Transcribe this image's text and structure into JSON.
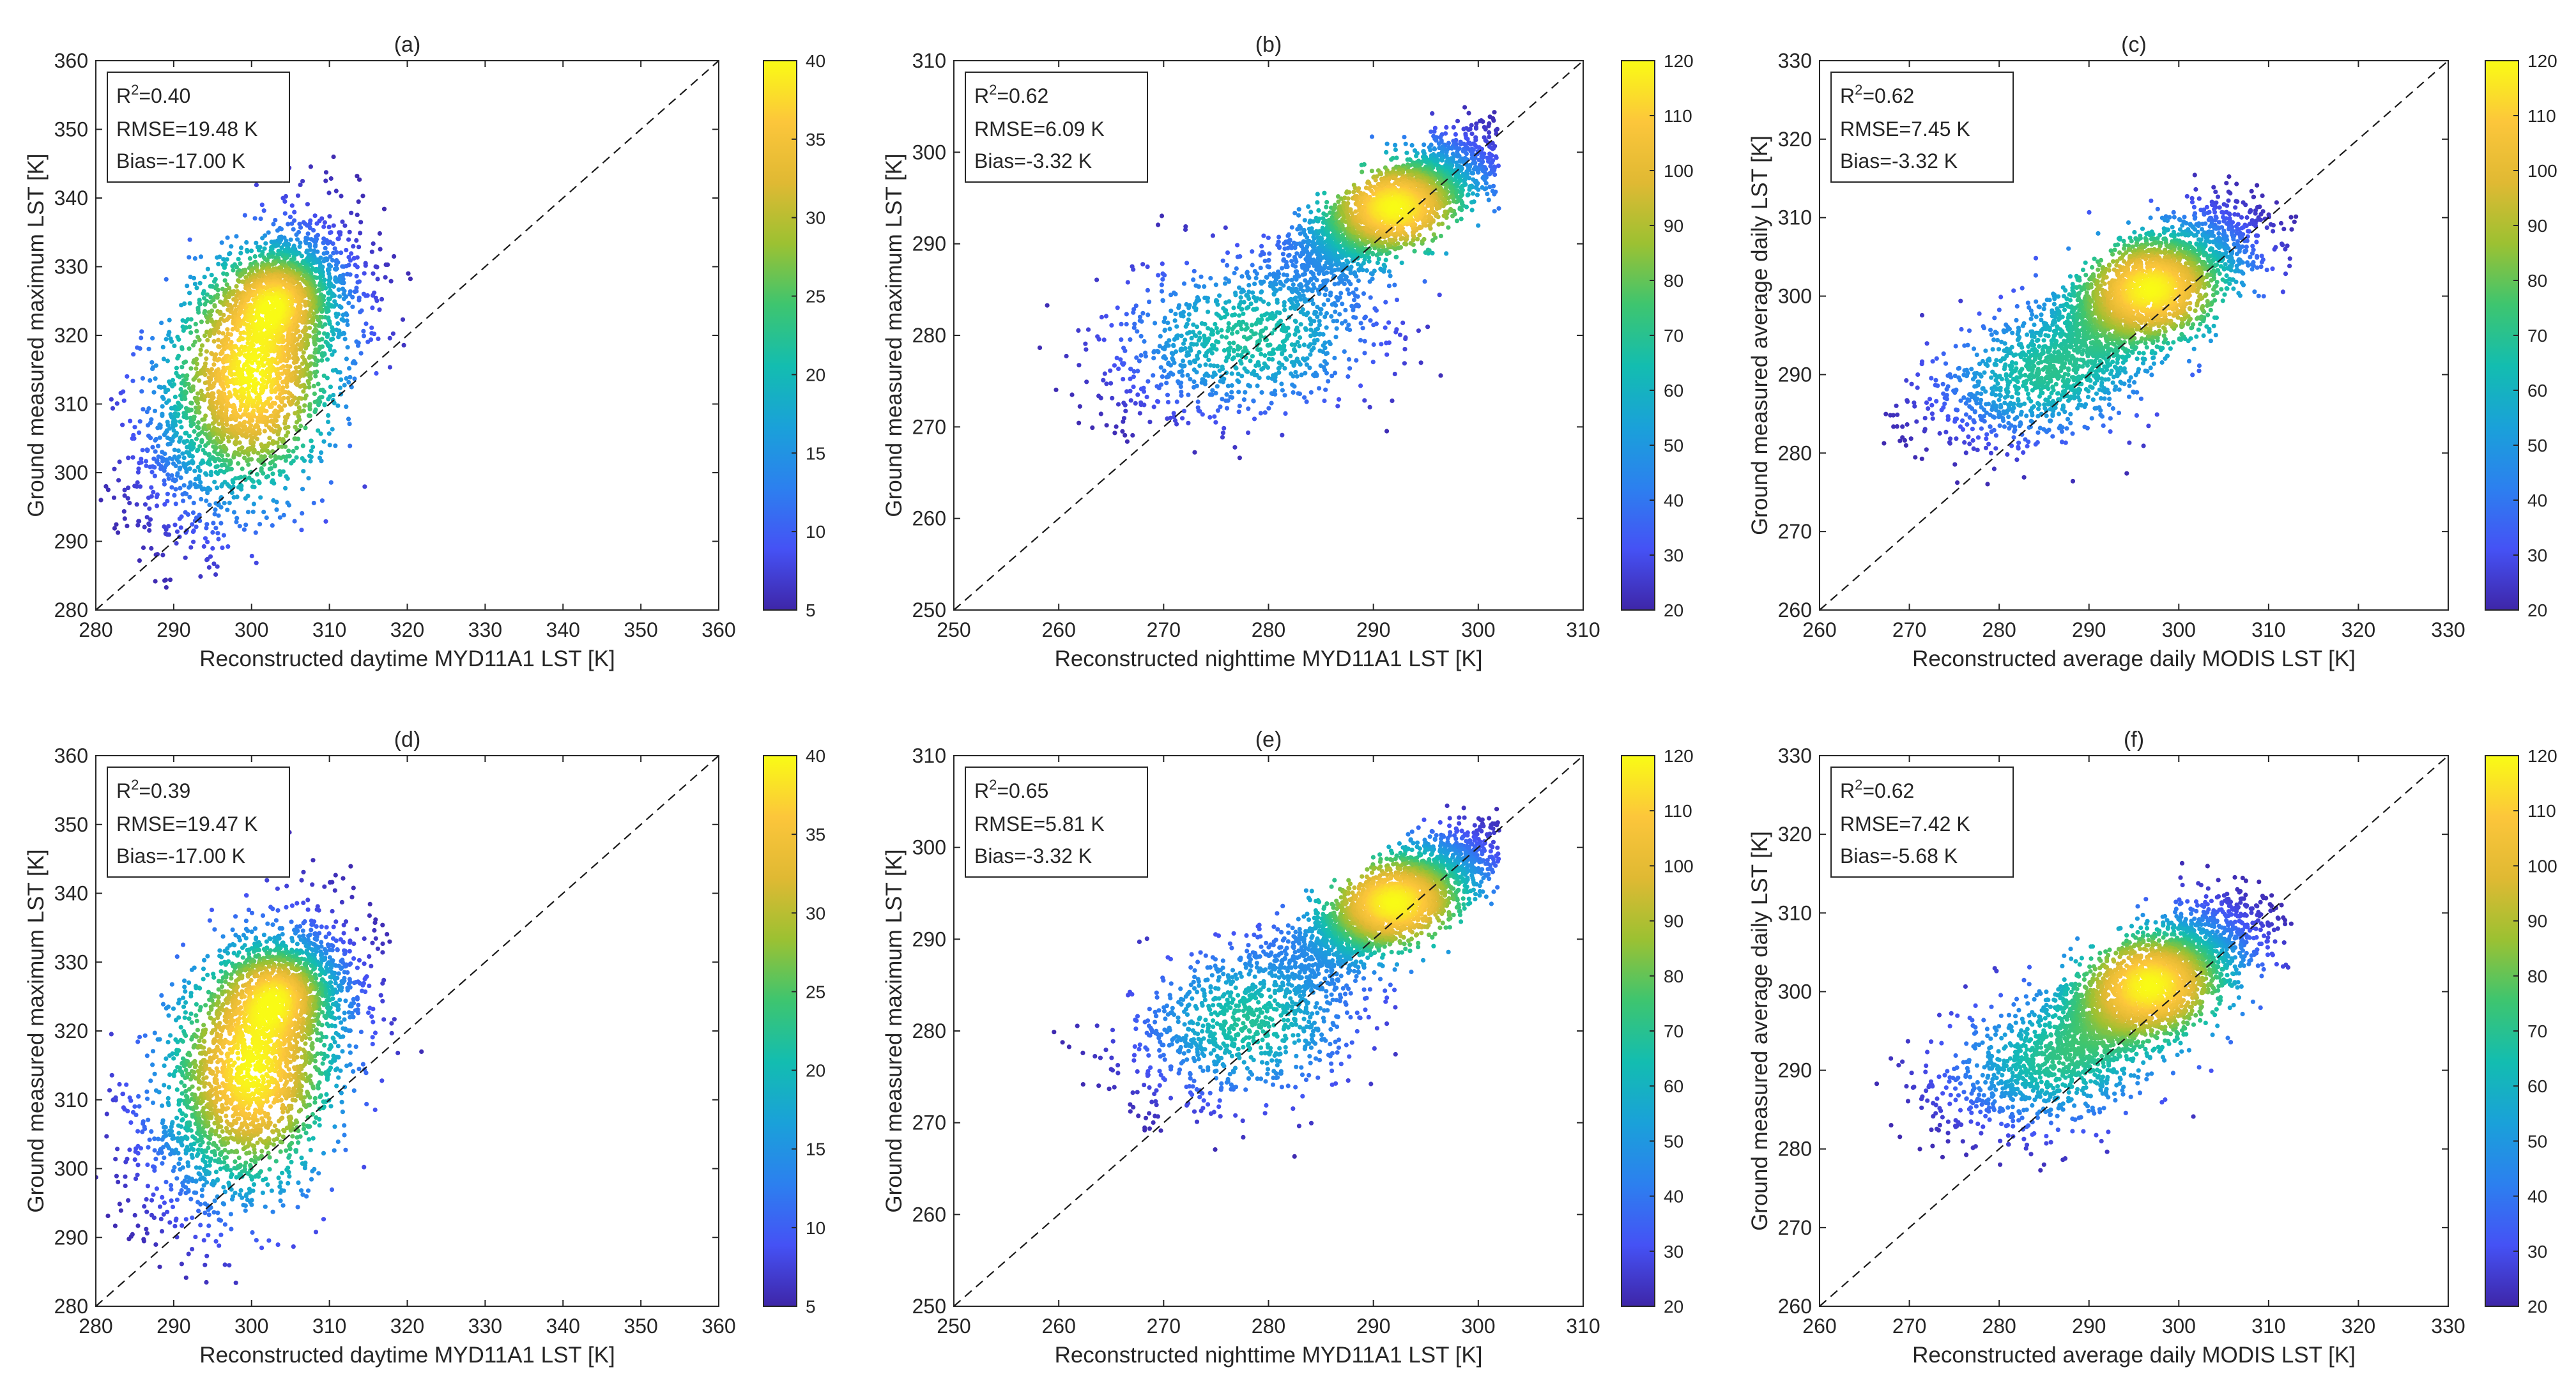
{
  "figure": {
    "background": "#ffffff",
    "colormap": "parula"
  },
  "colormap_stops": [
    "#3e26a8",
    "#4552f5",
    "#2c80ef",
    "#1aa1d9",
    "#13bdb0",
    "#3ec56f",
    "#9cc132",
    "#e0b933",
    "#fcc63b",
    "#f9fb15"
  ],
  "chart_data": [
    {
      "type": "scatter",
      "subtype": "density scatter with 1:1 reference line",
      "panel": "(a)",
      "xlabel": "Reconstructed daytime MYD11A1 LST [K]",
      "ylabel": "Ground measured maximum LST [K]",
      "xlim": [
        280,
        360
      ],
      "ylim": [
        280,
        360
      ],
      "xticks": [
        280,
        290,
        300,
        310,
        320,
        330,
        340,
        350,
        360
      ],
      "yticks": [
        280,
        290,
        300,
        310,
        320,
        330,
        340,
        350,
        360
      ],
      "stats": {
        "r2_prefix": "R",
        "r2_sup": "2",
        "r2_value": "=0.40",
        "rmse": "RMSE=19.48 K",
        "bias": "Bias=-17.00 K"
      },
      "colorbar": {
        "range": [
          5,
          40
        ],
        "ticks": [
          5,
          10,
          15,
          20,
          25,
          30,
          35,
          40
        ]
      },
      "one_to_one_line": true,
      "point_cloud": {
        "main": {
          "center": [
            300,
            314
          ],
          "sd_x": 7,
          "sd_y": 11,
          "corr": 0.5
        },
        "secondary": {
          "center": [
            304,
            326
          ],
          "sd_x": 4,
          "sd_y": 4,
          "corr": 0.2
        },
        "x_range": [
          280,
          343
        ],
        "y_range": [
          283,
          351
        ]
      }
    },
    {
      "type": "scatter",
      "subtype": "density scatter with 1:1 reference line",
      "panel": "(b)",
      "xlabel": "Reconstructed nighttime MYD11A1 LST [K]",
      "ylabel": "Ground measured maximum LST [K]",
      "xlim": [
        250,
        310
      ],
      "ylim": [
        250,
        310
      ],
      "xticks": [
        250,
        260,
        270,
        280,
        290,
        300,
        310
      ],
      "yticks": [
        250,
        260,
        270,
        280,
        290,
        300,
        310
      ],
      "stats": {
        "r2_prefix": "R",
        "r2_sup": "2",
        "r2_value": "=0.62",
        "rmse": "RMSE=6.09 K",
        "bias": "Bias=-3.32 K"
      },
      "colorbar": {
        "range": [
          20,
          120
        ],
        "ticks": [
          20,
          30,
          40,
          50,
          60,
          70,
          80,
          90,
          100,
          110,
          120
        ]
      },
      "one_to_one_line": true,
      "point_cloud": {
        "main": {
          "center": [
            292,
            294
          ],
          "sd_x": 5,
          "sd_y": 4,
          "corr": 0.8
        },
        "secondary": {
          "center": [
            278,
            280
          ],
          "sd_x": 7,
          "sd_y": 5,
          "corr": 0.4
        },
        "x_range": [
          252,
          302
        ],
        "y_range": [
          261,
          307
        ]
      }
    },
    {
      "type": "scatter",
      "subtype": "density scatter with 1:1 reference line",
      "panel": "(c)",
      "xlabel": "Reconstructed average daily MODIS LST [K]",
      "ylabel": "Ground measured average daily LST [K]",
      "xlim": [
        260,
        330
      ],
      "ylim": [
        260,
        330
      ],
      "xticks": [
        260,
        270,
        280,
        290,
        300,
        310,
        320,
        330
      ],
      "yticks": [
        260,
        270,
        280,
        290,
        300,
        310,
        320,
        330
      ],
      "stats": {
        "r2_prefix": "R",
        "r2_sup": "2",
        "r2_value": "=0.62",
        "rmse": "RMSE=7.45 K",
        "bias": "Bias=-3.32 K"
      },
      "colorbar": {
        "range": [
          20,
          120
        ],
        "ticks": [
          20,
          30,
          40,
          50,
          60,
          70,
          80,
          90,
          100,
          110,
          120
        ]
      },
      "one_to_one_line": true,
      "point_cloud": {
        "main": {
          "center": [
            297,
            301
          ],
          "sd_x": 6,
          "sd_y": 5,
          "corr": 0.7
        },
        "secondary": {
          "center": [
            285,
            290
          ],
          "sd_x": 7,
          "sd_y": 5,
          "corr": 0.5
        },
        "x_range": [
          267,
          325
        ],
        "y_range": [
          272,
          325
        ]
      }
    },
    {
      "type": "scatter",
      "subtype": "density scatter with 1:1 reference line",
      "panel": "(d)",
      "xlabel": "Reconstructed daytime MYD11A1 LST [K]",
      "ylabel": "Ground measured maximum LST [K]",
      "xlim": [
        280,
        360
      ],
      "ylim": [
        280,
        360
      ],
      "xticks": [
        280,
        290,
        300,
        310,
        320,
        330,
        340,
        350,
        360
      ],
      "yticks": [
        280,
        290,
        300,
        310,
        320,
        330,
        340,
        350,
        360
      ],
      "stats": {
        "r2_prefix": "R",
        "r2_sup": "2",
        "r2_value": "=0.39",
        "rmse": "RMSE=19.47 K",
        "bias": "Bias=-17.00 K"
      },
      "colorbar": {
        "range": [
          5,
          40
        ],
        "ticks": [
          5,
          10,
          15,
          20,
          25,
          30,
          35,
          40
        ]
      },
      "one_to_one_line": true,
      "point_cloud": {
        "main": {
          "center": [
            300,
            314
          ],
          "sd_x": 7,
          "sd_y": 11,
          "corr": 0.5
        },
        "secondary": {
          "center": [
            304,
            326
          ],
          "sd_x": 4,
          "sd_y": 4,
          "corr": 0.2
        },
        "x_range": [
          280,
          341
        ],
        "y_range": [
          283,
          351
        ]
      }
    },
    {
      "type": "scatter",
      "subtype": "density scatter with 1:1 reference line",
      "panel": "(e)",
      "xlabel": "Reconstructed nighttime MYD11A1 LST [K]",
      "ylabel": "Ground measured maximum LST [K]",
      "xlim": [
        250,
        310
      ],
      "ylim": [
        250,
        310
      ],
      "xticks": [
        250,
        260,
        270,
        280,
        290,
        300,
        310
      ],
      "yticks": [
        250,
        260,
        270,
        280,
        290,
        300,
        310
      ],
      "stats": {
        "r2_prefix": "R",
        "r2_sup": "2",
        "r2_value": "=0.65",
        "rmse": "RMSE=5.81 K",
        "bias": "Bias=-3.32 K"
      },
      "colorbar": {
        "range": [
          20,
          120
        ],
        "ticks": [
          20,
          30,
          40,
          50,
          60,
          70,
          80,
          90,
          100,
          110,
          120
        ]
      },
      "one_to_one_line": true,
      "point_cloud": {
        "main": {
          "center": [
            292,
            294
          ],
          "sd_x": 5,
          "sd_y": 4,
          "corr": 0.8
        },
        "secondary": {
          "center": [
            278,
            281
          ],
          "sd_x": 6,
          "sd_y": 5,
          "corr": 0.4
        },
        "x_range": [
          255,
          302
        ],
        "y_range": [
          261,
          307
        ]
      }
    },
    {
      "type": "scatter",
      "subtype": "density scatter with 1:1 reference line",
      "panel": "(f)",
      "xlabel": "Reconstructed average daily MODIS LST [K]",
      "ylabel": "Ground measured average daily LST [K]",
      "xlim": [
        260,
        330
      ],
      "ylim": [
        260,
        330
      ],
      "xticks": [
        260,
        270,
        280,
        290,
        300,
        310,
        320,
        330
      ],
      "yticks": [
        260,
        270,
        280,
        290,
        300,
        310,
        320,
        330
      ],
      "stats": {
        "r2_prefix": "R",
        "r2_sup": "2",
        "r2_value": "=0.62",
        "rmse": "RMSE=7.42 K",
        "bias": "Bias=-5.68 K"
      },
      "colorbar": {
        "range": [
          20,
          120
        ],
        "ticks": [
          20,
          30,
          40,
          50,
          60,
          70,
          80,
          90,
          100,
          110,
          120
        ]
      },
      "one_to_one_line": true,
      "point_cloud": {
        "main": {
          "center": [
            297,
            301
          ],
          "sd_x": 6,
          "sd_y": 5,
          "corr": 0.7
        },
        "secondary": {
          "center": [
            286,
            291
          ],
          "sd_x": 7,
          "sd_y": 5,
          "corr": 0.5
        },
        "x_range": [
          265,
          324
        ],
        "y_range": [
          272,
          323
        ]
      }
    }
  ]
}
